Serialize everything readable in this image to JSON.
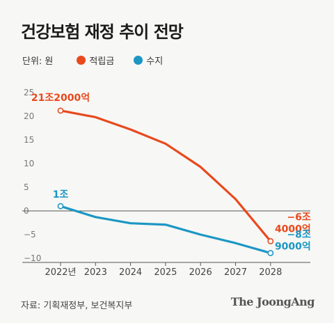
{
  "title": "건강보험 재정 추이 전망",
  "legend": {
    "unit": "단위: 원"
  },
  "source": "자료: 기획재정부, 보건복지부",
  "brand": "The JoongAng",
  "colors": {
    "reserve": "#e8491d",
    "balance": "#1b97c4",
    "axis": "#555555",
    "grid": "#cfcfcf"
  },
  "chart_data": {
    "type": "line",
    "title": "건강보험 재정 추이 전망",
    "x": [
      "2022년",
      "2023",
      "2024",
      "2025",
      "2026",
      "2027",
      "2028"
    ],
    "ylim": [
      -10,
      25
    ],
    "yticks": [
      "25",
      "20",
      "15",
      "10",
      "5",
      "0",
      "−5",
      "−10"
    ],
    "ytick_values": [
      25,
      20,
      15,
      10,
      5,
      0,
      -5,
      -10
    ],
    "grid": false,
    "series": [
      {
        "name": "적립금",
        "color": "#e8491d",
        "values": [
          21.2,
          19.8,
          17.2,
          14.2,
          9.3,
          2.5,
          -6.4
        ]
      },
      {
        "name": "수지",
        "color": "#1b97c4",
        "values": [
          1.0,
          -1.3,
          -2.6,
          -2.9,
          -5.0,
          -6.8,
          -8.9
        ]
      }
    ],
    "annotations": [
      {
        "series": 0,
        "point": 0,
        "text": "21조2000억"
      },
      {
        "series": 0,
        "point": 6,
        "text_lines": [
          "−6조",
          "4000억"
        ]
      },
      {
        "series": 1,
        "point": 0,
        "text": "1조"
      },
      {
        "series": 1,
        "point": 6,
        "text_lines": [
          "−8조",
          "9000억"
        ]
      }
    ]
  }
}
